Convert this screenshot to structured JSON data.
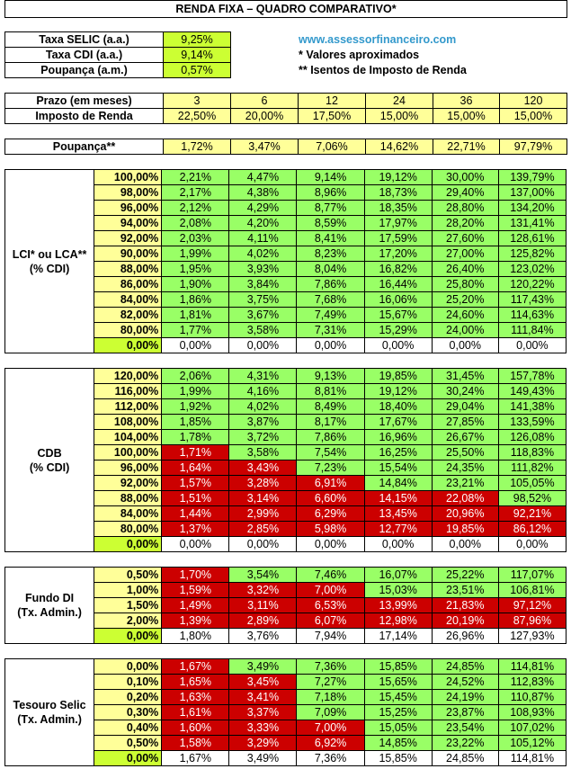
{
  "title": "RENDA FIXA – QUADRO COMPARATIVO*",
  "rates": [
    {
      "label": "Taxa SELIC (a.a.)",
      "value": "9,25%"
    },
    {
      "label": "Taxa CDI (a.a.)",
      "value": "9,14%"
    },
    {
      "label": "Poupança (a.m.)",
      "value": "0,57%"
    }
  ],
  "info": {
    "website": "www.assessorfinanceiro.com",
    "note1": "* Valores aproximados",
    "note2": "** Isentos de Imposto de Renda"
  },
  "prazo": {
    "label": "Prazo (em meses)",
    "values": [
      "3",
      "6",
      "12",
      "24",
      "36",
      "120"
    ]
  },
  "imposto": {
    "label": "Imposto de Renda",
    "values": [
      "22,50%",
      "20,00%",
      "17,50%",
      "15,00%",
      "15,00%",
      "15,00%"
    ]
  },
  "poupanca": {
    "label": "Poupança**",
    "values": [
      "1,72%",
      "3,47%",
      "7,06%",
      "14,62%",
      "22,71%",
      "97,79%"
    ]
  },
  "colors": {
    "yellow": "#ffff99",
    "lime": "#ccff33",
    "green": "#99ff66",
    "red": "#cc0000",
    "white": "#ffffff",
    "link": "#3399cc"
  },
  "sections": [
    {
      "label_lines": [
        "LCI* ou LCA**",
        "(% CDI)"
      ],
      "rows": [
        {
          "rate": "100,00%",
          "rate_color": "y",
          "values": [
            "2,21%",
            "4,47%",
            "9,14%",
            "19,12%",
            "30,00%",
            "139,79%"
          ],
          "colors": [
            "g",
            "g",
            "g",
            "g",
            "g",
            "g"
          ]
        },
        {
          "rate": "98,00%",
          "rate_color": "y",
          "values": [
            "2,17%",
            "4,38%",
            "8,96%",
            "18,73%",
            "29,40%",
            "137,00%"
          ],
          "colors": [
            "g",
            "g",
            "g",
            "g",
            "g",
            "g"
          ]
        },
        {
          "rate": "96,00%",
          "rate_color": "y",
          "values": [
            "2,12%",
            "4,29%",
            "8,77%",
            "18,35%",
            "28,80%",
            "134,20%"
          ],
          "colors": [
            "g",
            "g",
            "g",
            "g",
            "g",
            "g"
          ]
        },
        {
          "rate": "94,00%",
          "rate_color": "y",
          "values": [
            "2,08%",
            "4,20%",
            "8,59%",
            "17,97%",
            "28,20%",
            "131,41%"
          ],
          "colors": [
            "g",
            "g",
            "g",
            "g",
            "g",
            "g"
          ]
        },
        {
          "rate": "92,00%",
          "rate_color": "y",
          "values": [
            "2,03%",
            "4,11%",
            "8,41%",
            "17,59%",
            "27,60%",
            "128,61%"
          ],
          "colors": [
            "g",
            "g",
            "g",
            "g",
            "g",
            "g"
          ]
        },
        {
          "rate": "90,00%",
          "rate_color": "y",
          "values": [
            "1,99%",
            "4,02%",
            "8,23%",
            "17,20%",
            "27,00%",
            "125,82%"
          ],
          "colors": [
            "g",
            "g",
            "g",
            "g",
            "g",
            "g"
          ]
        },
        {
          "rate": "88,00%",
          "rate_color": "y",
          "values": [
            "1,95%",
            "3,93%",
            "8,04%",
            "16,82%",
            "26,40%",
            "123,02%"
          ],
          "colors": [
            "g",
            "g",
            "g",
            "g",
            "g",
            "g"
          ]
        },
        {
          "rate": "86,00%",
          "rate_color": "y",
          "values": [
            "1,90%",
            "3,84%",
            "7,86%",
            "16,44%",
            "25,80%",
            "120,22%"
          ],
          "colors": [
            "g",
            "g",
            "g",
            "g",
            "g",
            "g"
          ]
        },
        {
          "rate": "84,00%",
          "rate_color": "y",
          "values": [
            "1,86%",
            "3,75%",
            "7,68%",
            "16,06%",
            "25,20%",
            "117,43%"
          ],
          "colors": [
            "g",
            "g",
            "g",
            "g",
            "g",
            "g"
          ]
        },
        {
          "rate": "82,00%",
          "rate_color": "y",
          "values": [
            "1,81%",
            "3,67%",
            "7,49%",
            "15,67%",
            "24,60%",
            "114,63%"
          ],
          "colors": [
            "g",
            "g",
            "g",
            "g",
            "g",
            "g"
          ]
        },
        {
          "rate": "80,00%",
          "rate_color": "y",
          "values": [
            "1,77%",
            "3,58%",
            "7,31%",
            "15,29%",
            "24,00%",
            "111,84%"
          ],
          "colors": [
            "g",
            "g",
            "g",
            "g",
            "g",
            "g"
          ]
        },
        {
          "rate": "0,00%",
          "rate_color": "lime",
          "values": [
            "0,00%",
            "0,00%",
            "0,00%",
            "0,00%",
            "0,00%",
            "0,00%"
          ],
          "colors": [
            "w",
            "w",
            "w",
            "w",
            "w",
            "w"
          ]
        }
      ]
    },
    {
      "label_lines": [
        "CDB",
        "(% CDI)"
      ],
      "rows": [
        {
          "rate": "120,00%",
          "rate_color": "y",
          "values": [
            "2,06%",
            "4,31%",
            "9,13%",
            "19,85%",
            "31,45%",
            "157,78%"
          ],
          "colors": [
            "g",
            "g",
            "g",
            "g",
            "g",
            "g"
          ]
        },
        {
          "rate": "116,00%",
          "rate_color": "y",
          "values": [
            "1,99%",
            "4,16%",
            "8,81%",
            "19,12%",
            "30,24%",
            "149,43%"
          ],
          "colors": [
            "g",
            "g",
            "g",
            "g",
            "g",
            "g"
          ]
        },
        {
          "rate": "112,00%",
          "rate_color": "y",
          "values": [
            "1,92%",
            "4,02%",
            "8,49%",
            "18,40%",
            "29,04%",
            "141,38%"
          ],
          "colors": [
            "g",
            "g",
            "g",
            "g",
            "g",
            "g"
          ]
        },
        {
          "rate": "108,00%",
          "rate_color": "y",
          "values": [
            "1,85%",
            "3,87%",
            "8,17%",
            "17,67%",
            "27,85%",
            "133,59%"
          ],
          "colors": [
            "g",
            "g",
            "g",
            "g",
            "g",
            "g"
          ]
        },
        {
          "rate": "104,00%",
          "rate_color": "y",
          "values": [
            "1,78%",
            "3,72%",
            "7,86%",
            "16,96%",
            "26,67%",
            "126,08%"
          ],
          "colors": [
            "g",
            "g",
            "g",
            "g",
            "g",
            "g"
          ]
        },
        {
          "rate": "100,00%",
          "rate_color": "y",
          "values": [
            "1,71%",
            "3,58%",
            "7,54%",
            "16,25%",
            "25,50%",
            "118,83%"
          ],
          "colors": [
            "r",
            "g",
            "g",
            "g",
            "g",
            "g"
          ]
        },
        {
          "rate": "96,00%",
          "rate_color": "y",
          "values": [
            "1,64%",
            "3,43%",
            "7,23%",
            "15,54%",
            "24,35%",
            "111,82%"
          ],
          "colors": [
            "r",
            "r",
            "g",
            "g",
            "g",
            "g"
          ]
        },
        {
          "rate": "92,00%",
          "rate_color": "y",
          "values": [
            "1,57%",
            "3,28%",
            "6,91%",
            "14,84%",
            "23,21%",
            "105,05%"
          ],
          "colors": [
            "r",
            "r",
            "r",
            "g",
            "g",
            "g"
          ]
        },
        {
          "rate": "88,00%",
          "rate_color": "y",
          "values": [
            "1,51%",
            "3,14%",
            "6,60%",
            "14,15%",
            "22,08%",
            "98,52%"
          ],
          "colors": [
            "r",
            "r",
            "r",
            "r",
            "r",
            "g"
          ]
        },
        {
          "rate": "84,00%",
          "rate_color": "y",
          "values": [
            "1,44%",
            "2,99%",
            "6,29%",
            "13,45%",
            "20,96%",
            "92,21%"
          ],
          "colors": [
            "r",
            "r",
            "r",
            "r",
            "r",
            "r"
          ]
        },
        {
          "rate": "80,00%",
          "rate_color": "y",
          "values": [
            "1,37%",
            "2,85%",
            "5,98%",
            "12,77%",
            "19,85%",
            "86,12%"
          ],
          "colors": [
            "r",
            "r",
            "r",
            "r",
            "r",
            "r"
          ]
        },
        {
          "rate": "0,00%",
          "rate_color": "lime",
          "values": [
            "0,00%",
            "0,00%",
            "0,00%",
            "0,00%",
            "0,00%",
            "0,00%"
          ],
          "colors": [
            "w",
            "w",
            "w",
            "w",
            "w",
            "w"
          ]
        }
      ]
    },
    {
      "label_lines": [
        "Fundo DI",
        "(Tx. Admin.)"
      ],
      "rows": [
        {
          "rate": "0,50%",
          "rate_color": "y",
          "values": [
            "1,70%",
            "3,54%",
            "7,46%",
            "16,07%",
            "25,22%",
            "117,07%"
          ],
          "colors": [
            "r",
            "g",
            "g",
            "g",
            "g",
            "g"
          ]
        },
        {
          "rate": "1,00%",
          "rate_color": "y",
          "values": [
            "1,59%",
            "3,32%",
            "7,00%",
            "15,03%",
            "23,51%",
            "106,81%"
          ],
          "colors": [
            "r",
            "r",
            "r",
            "g",
            "g",
            "g"
          ]
        },
        {
          "rate": "1,50%",
          "rate_color": "y",
          "values": [
            "1,49%",
            "3,11%",
            "6,53%",
            "13,99%",
            "21,83%",
            "97,12%"
          ],
          "colors": [
            "r",
            "r",
            "r",
            "r",
            "r",
            "r"
          ]
        },
        {
          "rate": "2,00%",
          "rate_color": "y",
          "values": [
            "1,39%",
            "2,89%",
            "6,07%",
            "12,98%",
            "20,19%",
            "87,96%"
          ],
          "colors": [
            "r",
            "r",
            "r",
            "r",
            "r",
            "r"
          ]
        },
        {
          "rate": "0,00%",
          "rate_color": "lime",
          "values": [
            "1,80%",
            "3,76%",
            "7,94%",
            "17,14%",
            "26,96%",
            "127,93%"
          ],
          "colors": [
            "w",
            "w",
            "w",
            "w",
            "w",
            "w"
          ]
        }
      ]
    },
    {
      "label_lines": [
        "Tesouro Selic",
        "(Tx. Admin.)"
      ],
      "rows": [
        {
          "rate": "0,00%",
          "rate_color": "y",
          "values": [
            "1,67%",
            "3,49%",
            "7,36%",
            "15,85%",
            "24,85%",
            "114,81%"
          ],
          "colors": [
            "r",
            "g",
            "g",
            "g",
            "g",
            "g"
          ]
        },
        {
          "rate": "0,10%",
          "rate_color": "y",
          "values": [
            "1,65%",
            "3,45%",
            "7,27%",
            "15,65%",
            "24,52%",
            "112,83%"
          ],
          "colors": [
            "r",
            "r",
            "g",
            "g",
            "g",
            "g"
          ]
        },
        {
          "rate": "0,20%",
          "rate_color": "y",
          "values": [
            "1,63%",
            "3,41%",
            "7,18%",
            "15,45%",
            "24,19%",
            "110,87%"
          ],
          "colors": [
            "r",
            "r",
            "g",
            "g",
            "g",
            "g"
          ]
        },
        {
          "rate": "0,30%",
          "rate_color": "y",
          "values": [
            "1,61%",
            "3,37%",
            "7,09%",
            "15,25%",
            "23,87%",
            "108,93%"
          ],
          "colors": [
            "r",
            "r",
            "g",
            "g",
            "g",
            "g"
          ]
        },
        {
          "rate": "0,40%",
          "rate_color": "y",
          "values": [
            "1,60%",
            "3,33%",
            "7,00%",
            "15,05%",
            "23,54%",
            "107,02%"
          ],
          "colors": [
            "r",
            "r",
            "r",
            "g",
            "g",
            "g"
          ]
        },
        {
          "rate": "0,50%",
          "rate_color": "y",
          "values": [
            "1,58%",
            "3,29%",
            "6,92%",
            "14,85%",
            "23,22%",
            "105,12%"
          ],
          "colors": [
            "r",
            "r",
            "r",
            "g",
            "g",
            "g"
          ]
        },
        {
          "rate": "0,00%",
          "rate_color": "lime",
          "values": [
            "1,67%",
            "3,49%",
            "7,36%",
            "15,85%",
            "24,85%",
            "114,81%"
          ],
          "colors": [
            "w",
            "w",
            "w",
            "w",
            "w",
            "w"
          ]
        }
      ]
    }
  ]
}
